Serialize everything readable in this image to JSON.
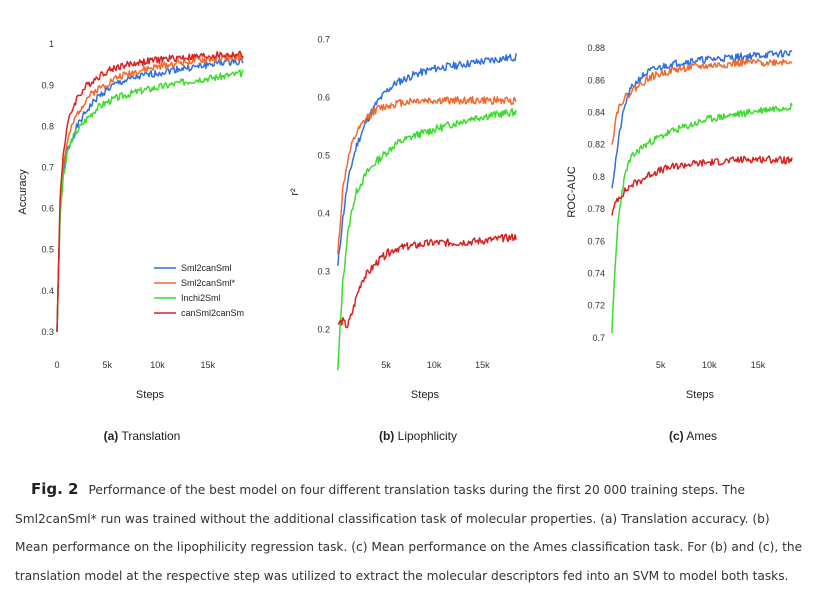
{
  "panels": [
    {
      "id": "translation",
      "sub_letter": "(a)",
      "sub_title": "Translation",
      "chart_data": {
        "type": "line",
        "xlabel": "Steps",
        "ylabel": "Accuracy",
        "xlim": [
          0,
          18600
        ],
        "ylim": [
          0.29,
          1.02
        ],
        "x_ticks": [
          0,
          5000,
          10000,
          15000
        ],
        "x_tick_labels": [
          "0",
          "5k",
          "10k",
          "15k"
        ],
        "y_ticks": [
          0.3,
          0.4,
          0.5,
          0.6,
          0.7,
          0.8,
          0.9,
          1.0
        ],
        "y_tick_labels": [
          "0.3",
          "0.4",
          "0.5",
          "0.6",
          "0.7",
          "0.8",
          "0.9",
          "1"
        ],
        "grid": false,
        "legend_position": "lower-right",
        "series": [
          {
            "name": "Sml2canSml",
            "color": "#2f6fe0",
            "x": [
              0,
              300,
              600,
              1000,
              1500,
              2000,
              3000,
              4000,
              5000,
              6000,
              8000,
              10000,
              12000,
              14000,
              16000,
              18500
            ],
            "y": [
              0.3,
              0.58,
              0.68,
              0.74,
              0.77,
              0.8,
              0.84,
              0.87,
              0.89,
              0.905,
              0.92,
              0.93,
              0.94,
              0.945,
              0.955,
              0.96
            ]
          },
          {
            "name": "Sml2canSml*",
            "color": "#f26a2e",
            "x": [
              0,
              300,
              600,
              1000,
              1500,
              2000,
              3000,
              4000,
              5000,
              6000,
              8000,
              10000,
              12000,
              14000,
              16000,
              18500
            ],
            "y": [
              0.3,
              0.6,
              0.7,
              0.76,
              0.8,
              0.83,
              0.87,
              0.89,
              0.905,
              0.92,
              0.935,
              0.945,
              0.955,
              0.96,
              0.965,
              0.97
            ]
          },
          {
            "name": "Inchi2Sml",
            "color": "#3ddc2e",
            "x": [
              0,
              300,
              600,
              1000,
              1500,
              2000,
              3000,
              4000,
              5000,
              6000,
              8000,
              10000,
              12000,
              14000,
              16000,
              18500
            ],
            "y": [
              0.3,
              0.58,
              0.67,
              0.73,
              0.77,
              0.79,
              0.82,
              0.845,
              0.86,
              0.87,
              0.885,
              0.895,
              0.905,
              0.915,
              0.92,
              0.93
            ]
          },
          {
            "name": "canSml2canSm",
            "color": "#d92323",
            "x": [
              0,
              300,
              600,
              1000,
              1500,
              2000,
              3000,
              4000,
              5000,
              6000,
              8000,
              10000,
              12000,
              14000,
              16000,
              18500
            ],
            "y": [
              0.3,
              0.62,
              0.73,
              0.8,
              0.84,
              0.87,
              0.9,
              0.92,
              0.935,
              0.945,
              0.955,
              0.962,
              0.967,
              0.97,
              0.973,
              0.975
            ]
          }
        ]
      }
    },
    {
      "id": "lipophilicity",
      "sub_letter": "(b)",
      "sub_title": "Lipophlicity",
      "chart_data": {
        "type": "line",
        "xlabel": "Steps",
        "ylabel": "r²",
        "xlim": [
          -500,
          18800
        ],
        "ylim": [
          0.165,
          0.72
        ],
        "x_ticks": [
          5000,
          10000,
          15000
        ],
        "x_tick_labels": [
          "5k",
          "10k",
          "15k"
        ],
        "y_ticks": [
          0.2,
          0.3,
          0.4,
          0.5,
          0.6,
          0.7
        ],
        "y_tick_labels": [
          "0.2",
          "0.3",
          "0.4",
          "0.5",
          "0.6",
          "0.7"
        ],
        "grid": false,
        "series": [
          {
            "name": "Sml2canSml",
            "color": "#2f6fe0",
            "x": [
              0,
              500,
              1000,
              1500,
              2000,
              3000,
              4000,
              5000,
              6000,
              8000,
              10000,
              12000,
              14000,
              16000,
              18500
            ],
            "y": [
              0.31,
              0.39,
              0.45,
              0.49,
              0.52,
              0.56,
              0.59,
              0.61,
              0.625,
              0.64,
              0.65,
              0.655,
              0.66,
              0.665,
              0.67
            ]
          },
          {
            "name": "Sml2canSml*",
            "color": "#f26a2e",
            "x": [
              0,
              500,
              1000,
              1500,
              2000,
              3000,
              4000,
              5000,
              6000,
              8000,
              10000,
              12000,
              14000,
              16000,
              18500
            ],
            "y": [
              0.33,
              0.44,
              0.49,
              0.52,
              0.54,
              0.565,
              0.58,
              0.585,
              0.59,
              0.595,
              0.595,
              0.595,
              0.595,
              0.595,
              0.595
            ]
          },
          {
            "name": "Inchi2Sml",
            "color": "#3ddc2e",
            "x": [
              0,
              500,
              1000,
              1500,
              2000,
              3000,
              4000,
              5000,
              6000,
              8000,
              10000,
              12000,
              14000,
              16000,
              18500
            ],
            "y": [
              0.13,
              0.28,
              0.36,
              0.41,
              0.44,
              0.47,
              0.49,
              0.505,
              0.52,
              0.535,
              0.545,
              0.555,
              0.565,
              0.57,
              0.575
            ]
          },
          {
            "name": "canSml2canSm",
            "color": "#d92323",
            "x": [
              0,
              500,
              1000,
              1500,
              2000,
              2500,
              3000,
              4000,
              5000,
              6000,
              8000,
              10000,
              12000,
              14000,
              16000,
              18500
            ],
            "y": [
              0.21,
              0.215,
              0.205,
              0.23,
              0.26,
              0.285,
              0.295,
              0.315,
              0.33,
              0.34,
              0.345,
              0.35,
              0.35,
              0.352,
              0.355,
              0.36
            ]
          }
        ]
      }
    },
    {
      "id": "ames",
      "sub_letter": "(c)",
      "sub_title": "Ames",
      "chart_data": {
        "type": "line",
        "xlabel": "Steps",
        "ylabel": "ROC-AUC",
        "xlim": [
          -500,
          18800
        ],
        "ylim": [
          0.695,
          0.885
        ],
        "x_ticks": [
          5000,
          10000,
          15000
        ],
        "x_tick_labels": [
          "5k",
          "10k",
          "15k"
        ],
        "y_ticks": [
          0.7,
          0.72,
          0.74,
          0.76,
          0.78,
          0.8,
          0.82,
          0.84,
          0.86,
          0.88
        ],
        "y_tick_labels": [
          "0.7",
          "0.72",
          "0.74",
          "0.76",
          "0.78",
          "0.8",
          "0.82",
          "0.84",
          "0.86",
          "0.88"
        ],
        "grid": false,
        "series": [
          {
            "name": "Sml2canSml",
            "color": "#2f6fe0",
            "x": [
              0,
              500,
              1000,
              1500,
              2000,
              3000,
              4000,
              5000,
              6000,
              8000,
              10000,
              12000,
              14000,
              16000,
              18500
            ],
            "y": [
              0.793,
              0.815,
              0.835,
              0.848,
              0.855,
              0.862,
              0.866,
              0.868,
              0.87,
              0.872,
              0.873,
              0.874,
              0.875,
              0.876,
              0.877
            ]
          },
          {
            "name": "Sml2canSml*",
            "color": "#f26a2e",
            "x": [
              0,
              500,
              1000,
              1500,
              2000,
              3000,
              4000,
              5000,
              6000,
              8000,
              10000,
              12000,
              14000,
              16000,
              18500
            ],
            "y": [
              0.82,
              0.84,
              0.847,
              0.85,
              0.853,
              0.858,
              0.862,
              0.864,
              0.866,
              0.868,
              0.869,
              0.87,
              0.871,
              0.871,
              0.872
            ]
          },
          {
            "name": "Inchi2Sml",
            "color": "#3ddc2e",
            "x": [
              0,
              300,
              600,
              1000,
              1500,
              2000,
              3000,
              4000,
              5000,
              6000,
              8000,
              10000,
              12000,
              14000,
              16000,
              18500
            ],
            "y": [
              0.703,
              0.74,
              0.77,
              0.79,
              0.805,
              0.812,
              0.818,
              0.822,
              0.825,
              0.828,
              0.832,
              0.836,
              0.838,
              0.84,
              0.842,
              0.844
            ]
          },
          {
            "name": "canSml2canSm",
            "color": "#d92323",
            "x": [
              0,
              500,
              1000,
              1500,
              2000,
              3000,
              4000,
              5000,
              6000,
              8000,
              10000,
              12000,
              14000,
              16000,
              18500
            ],
            "y": [
              0.776,
              0.786,
              0.789,
              0.792,
              0.795,
              0.798,
              0.802,
              0.804,
              0.806,
              0.808,
              0.809,
              0.81,
              0.811,
              0.811,
              0.81
            ]
          }
        ]
      }
    }
  ],
  "caption": {
    "label": "Fig. 2",
    "text": "Performance of the best model on four different translation tasks during the first 20 000 training steps. The Sml2canSml* run was trained without the additional classification task of molecular properties. (a) Translation accuracy. (b) Mean performance on the lipophilicity regression task. (c) Mean performance on the Ames classification task. For (b) and (c), the translation model at the respective step was utilized to extract the molecular descriptors fed into an SVM to model both tasks."
  }
}
